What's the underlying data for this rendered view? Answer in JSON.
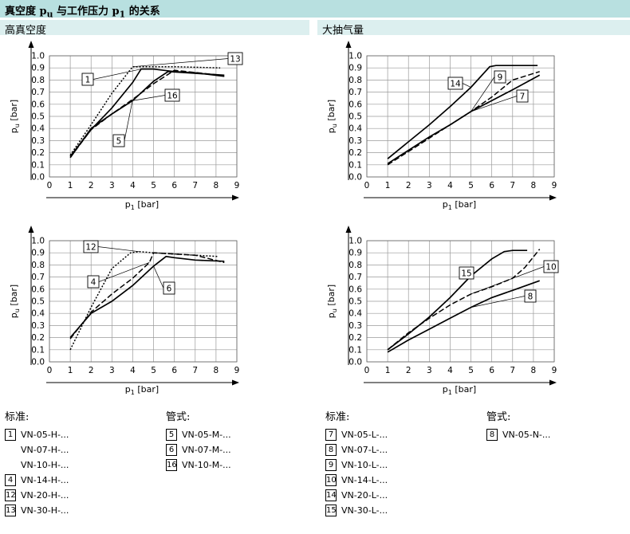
{
  "title": {
    "main": "真空度 p",
    "sub1": "u",
    "mid": " 与工作压力 p",
    "sub2": "1",
    "end": " 的关系"
  },
  "sections": {
    "left": "高真空度",
    "right": "大抽气量"
  },
  "axes": {
    "ylabel_main": "p",
    "ylabel_sub": "u",
    "ylabel_unit": " [bar]",
    "xlabel_main": "p",
    "xlabel_sub": "1",
    "xlabel_unit": " [bar]",
    "yticks": [
      "0.0",
      "0.1",
      "0.2",
      "0.3",
      "0.4",
      "0.5",
      "0.6",
      "0.7",
      "0.8",
      "0.9",
      "1.0"
    ],
    "xticks": [
      "0",
      "1",
      "2",
      "3",
      "4",
      "5",
      "6",
      "7",
      "8",
      "9"
    ]
  },
  "chart_data": [
    {
      "type": "line",
      "xlim": [
        0,
        9
      ],
      "ylim": [
        0,
        1.0
      ],
      "grid": true,
      "series": [
        {
          "name": "1",
          "style": "solid",
          "x": [
            1,
            2,
            3,
            4,
            4.4,
            5,
            6,
            7,
            8.4
          ],
          "y": [
            0.17,
            0.39,
            0.57,
            0.78,
            0.89,
            0.89,
            0.87,
            0.86,
            0.83
          ]
        },
        {
          "name": "13",
          "style": "dotted",
          "x": [
            1,
            2,
            3,
            4,
            6,
            8.2
          ],
          "y": [
            0.18,
            0.43,
            0.69,
            0.91,
            0.91,
            0.9
          ]
        },
        {
          "name": "16",
          "style": "solid",
          "x": [
            1,
            2,
            3,
            4,
            5,
            5.7,
            8.4
          ],
          "y": [
            0.16,
            0.4,
            0.52,
            0.63,
            0.79,
            0.87,
            0.84
          ]
        },
        {
          "name": "5",
          "style": "dashed",
          "x": [
            1,
            2,
            3,
            4,
            5,
            6,
            8.2
          ],
          "y": [
            0.16,
            0.39,
            0.52,
            0.64,
            0.77,
            0.88,
            0.84
          ]
        }
      ],
      "labels": [
        {
          "text": "1",
          "series": "1"
        },
        {
          "text": "13",
          "series": "13"
        },
        {
          "text": "16",
          "series": "16"
        },
        {
          "text": "5",
          "series": "5"
        }
      ]
    },
    {
      "type": "line",
      "xlim": [
        0,
        9
      ],
      "ylim": [
        0,
        1.0
      ],
      "grid": true,
      "series": [
        {
          "name": "14",
          "style": "solid",
          "x": [
            1,
            2,
            3,
            4,
            5,
            5.9,
            6.2,
            8.2
          ],
          "y": [
            0.15,
            0.29,
            0.43,
            0.58,
            0.74,
            0.91,
            0.92,
            0.92
          ]
        },
        {
          "name": "9",
          "style": "dashed",
          "x": [
            1,
            2,
            3,
            4,
            5,
            6,
            7,
            8.3
          ],
          "y": [
            0.1,
            0.21,
            0.32,
            0.43,
            0.54,
            0.66,
            0.8,
            0.87
          ]
        },
        {
          "name": "7",
          "style": "solid",
          "x": [
            1,
            2,
            3,
            4,
            5,
            6,
            7,
            8.3
          ],
          "y": [
            0.11,
            0.22,
            0.33,
            0.43,
            0.54,
            0.63,
            0.72,
            0.84
          ]
        }
      ],
      "labels": [
        {
          "text": "14",
          "series": "14"
        },
        {
          "text": "9",
          "series": "9"
        },
        {
          "text": "7",
          "series": "7"
        }
      ]
    },
    {
      "type": "line",
      "xlim": [
        0,
        9
      ],
      "ylim": [
        0,
        1.0
      ],
      "grid": true,
      "series": [
        {
          "name": "12",
          "style": "dotted",
          "x": [
            1,
            2,
            3,
            3.9,
            4.3,
            5,
            6,
            7,
            8.1
          ],
          "y": [
            0.1,
            0.45,
            0.77,
            0.9,
            0.91,
            0.9,
            0.89,
            0.88,
            0.87
          ]
        },
        {
          "name": "4",
          "style": "dashed",
          "x": [
            1,
            2,
            3,
            4,
            4.8,
            5,
            6,
            7,
            8.4
          ],
          "y": [
            0.19,
            0.41,
            0.56,
            0.69,
            0.82,
            0.9,
            0.89,
            0.88,
            0.82
          ]
        },
        {
          "name": "6",
          "style": "solid",
          "x": [
            1,
            2,
            3,
            4,
            5,
            5.6,
            6,
            7,
            8.4
          ],
          "y": [
            0.2,
            0.4,
            0.5,
            0.63,
            0.79,
            0.87,
            0.86,
            0.84,
            0.83
          ]
        }
      ],
      "labels": [
        {
          "text": "12",
          "series": "12"
        },
        {
          "text": "4",
          "series": "4"
        },
        {
          "text": "6",
          "series": "6"
        }
      ]
    },
    {
      "type": "line",
      "xlim": [
        0,
        9
      ],
      "ylim": [
        0,
        1.0
      ],
      "grid": true,
      "series": [
        {
          "name": "15",
          "style": "solid",
          "x": [
            1,
            2,
            3,
            4,
            5,
            6,
            6.6,
            7,
            7.7
          ],
          "y": [
            0.1,
            0.23,
            0.37,
            0.53,
            0.71,
            0.85,
            0.91,
            0.92,
            0.92
          ]
        },
        {
          "name": "10",
          "style": "dashed",
          "x": [
            1,
            2,
            3,
            4,
            5,
            6,
            7,
            7.6,
            8.3
          ],
          "y": [
            0.1,
            0.24,
            0.36,
            0.47,
            0.56,
            0.62,
            0.69,
            0.78,
            0.93
          ]
        },
        {
          "name": "8",
          "style": "solid",
          "x": [
            1,
            2,
            3,
            4,
            5,
            6,
            7,
            8.3
          ],
          "y": [
            0.08,
            0.18,
            0.27,
            0.36,
            0.45,
            0.53,
            0.59,
            0.67
          ]
        }
      ],
      "labels": [
        {
          "text": "15",
          "series": "15"
        },
        {
          "text": "10",
          "series": "10"
        },
        {
          "text": "8",
          "series": "8"
        }
      ]
    }
  ],
  "legends": {
    "standard_a": {
      "title": "标准:",
      "rows": [
        {
          "num": "1",
          "text": "VN-05-H-..."
        },
        {
          "num": "",
          "text": "VN-07-H-..."
        },
        {
          "num": "",
          "text": "VN-10-H-..."
        },
        {
          "num": "4",
          "text": "VN-14-H-..."
        },
        {
          "num": "12",
          "text": "VN-20-H-..."
        },
        {
          "num": "13",
          "text": "VN-30-H-..."
        }
      ]
    },
    "fitting_a": {
      "title": "管式:",
      "rows": [
        {
          "num": "5",
          "text": "VN-05-M-..."
        },
        {
          "num": "6",
          "text": "VN-07-M-..."
        },
        {
          "num": "16",
          "text": "VN-10-M-..."
        }
      ]
    },
    "standard_b": {
      "title": "标准:",
      "rows": [
        {
          "num": "7",
          "text": "VN-05-L-..."
        },
        {
          "num": "8",
          "text": "VN-07-L-..."
        },
        {
          "num": "9",
          "text": "VN-10-L-..."
        },
        {
          "num": "10",
          "text": "VN-14-L-..."
        },
        {
          "num": "14",
          "text": "VN-20-L-..."
        },
        {
          "num": "15",
          "text": "VN-30-L-..."
        }
      ]
    },
    "fitting_b": {
      "title": "管式:",
      "rows": [
        {
          "num": "8",
          "text": "VN-05-N-..."
        }
      ]
    }
  }
}
